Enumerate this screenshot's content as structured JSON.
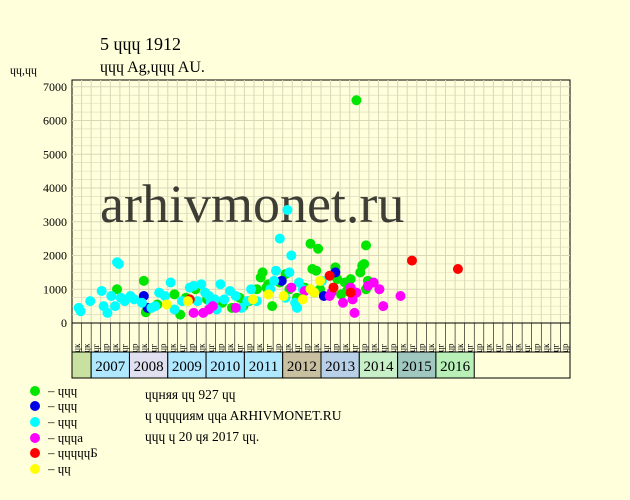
{
  "title": "5 ɥɥɥ 1912",
  "subtitle": "ɥɥɥ Ag,ɥɥɥ AU.",
  "y_unit": "ɥɥ,ɥɥ",
  "watermark": "arhivmonet.ru",
  "colors": {
    "background": "#ffffdc",
    "plot_bg": "#ffffdc",
    "grid": "#d8d8b8",
    "years_light": "#b0e8ff",
    "years_dark": "#80c8d8",
    "year_2008": "#e0e0f0",
    "year_2012": "#c8c0a0",
    "year_2013": "#b8d0e8",
    "year_2014": "#c8f0c8",
    "year_2015": "#a0c8c0",
    "year_2016": "#b8f0b8",
    "first_cell": "#c8e0a0"
  },
  "legend": [
    {
      "label": "– ɥɥɥ",
      "color": "#00e600"
    },
    {
      "label": "– ɥɥɥ",
      "color": "#0000e6"
    },
    {
      "label": "– ɥɥɥ",
      "color": "#00ffff"
    },
    {
      "label": "– ɥɥɥa",
      "color": "#ff00ff"
    },
    {
      "label": "– ɥɥɥɥɥБ",
      "color": "#ff0000"
    },
    {
      "label": "– ɥɥ",
      "color": "#ffff00"
    }
  ],
  "notes": [
    "ɥɥняя ɥɥ 927 ɥɥ",
    "ɥ ɥɥɥɥиям ɥɥa ARHIVMONET.RU",
    "ɥɥɥ ɥ 20 ɥя 2017 ɥɥ."
  ],
  "chart_data": {
    "type": "scatter",
    "title": "5 ɥɥɥ 1912",
    "subtitle": "ɥɥɥ Ag,ɥɥɥ AU.",
    "ylabel": "ɥɥ,ɥɥ",
    "ylim": [
      0,
      7200
    ],
    "yticks": [
      0,
      1000,
      2000,
      3000,
      4000,
      5000,
      6000,
      7000
    ],
    "grid": true,
    "quarter_labels": [
      "ɥк",
      "ɥк",
      "ɥг",
      "ɥр",
      "ɥк",
      "ɥг",
      "ɥр",
      "ɥк",
      "ɥг",
      "ɥр",
      "ɥк",
      "ɥг",
      "ɥр",
      "ɥк",
      "ɥг",
      "ɥр",
      "ɥк",
      "ɥг",
      "ɥр",
      "ɥк",
      "ɥг",
      "ɥр",
      "ɥк",
      "ɥг",
      "ɥр",
      "ɥк",
      "ɥг",
      "ɥр",
      "ɥк",
      "ɥг",
      "ɥр",
      "ɥк",
      "ɥг",
      "ɥр",
      "ɥк",
      "ɥг",
      "ɥр",
      "ɥк",
      "ɥг",
      "ɥр",
      "ɥк",
      "ɥг",
      "ɥр",
      "ɥк",
      "ɥг",
      "ɥр",
      "ɥк",
      "ɥг",
      "ɥр",
      "ɥк",
      "ɥг",
      "ɥр"
    ],
    "years": [
      "2007",
      "2008",
      "2009",
      "2010",
      "2011",
      "2012",
      "2013",
      "2014",
      "2015",
      "2016"
    ],
    "series": [
      {
        "color": "#00e600",
        "points": [
          [
            2007.05,
            1000
          ],
          [
            2007.75,
            1250
          ],
          [
            2007.8,
            320
          ],
          [
            2008.1,
            550
          ],
          [
            2008.55,
            850
          ],
          [
            2008.7,
            250
          ],
          [
            2008.85,
            750
          ],
          [
            2009.1,
            1000
          ],
          [
            2009.4,
            700
          ],
          [
            2009.6,
            500
          ],
          [
            2009.8,
            600
          ],
          [
            2010.05,
            450
          ],
          [
            2010.25,
            750
          ],
          [
            2010.35,
            500
          ],
          [
            2010.5,
            650
          ],
          [
            2010.7,
            1000
          ],
          [
            2010.8,
            1350
          ],
          [
            2010.85,
            1500
          ],
          [
            2010.95,
            1050
          ],
          [
            2011.0,
            1150
          ],
          [
            2011.1,
            500
          ],
          [
            2011.3,
            1200
          ],
          [
            2011.45,
            1450
          ],
          [
            2011.55,
            1000
          ],
          [
            2011.75,
            750
          ],
          [
            2011.95,
            1050
          ],
          [
            2012.1,
            2350
          ],
          [
            2012.15,
            1600
          ],
          [
            2012.25,
            1550
          ],
          [
            2012.3,
            2200
          ],
          [
            2012.35,
            1000
          ],
          [
            2012.75,
            1650
          ],
          [
            2012.8,
            1300
          ],
          [
            2012.9,
            850
          ],
          [
            2013.0,
            1200
          ],
          [
            2013.05,
            950
          ],
          [
            2013.15,
            1300
          ],
          [
            2013.2,
            900
          ],
          [
            2013.3,
            6600
          ],
          [
            2013.4,
            1500
          ],
          [
            2013.45,
            1700
          ],
          [
            2013.5,
            1750
          ],
          [
            2013.55,
            2300
          ],
          [
            2013.55,
            1000
          ],
          [
            2013.6,
            1250
          ]
        ]
      },
      {
        "color": "#0000e6",
        "points": [
          [
            2007.75,
            800
          ],
          [
            2007.85,
            450
          ],
          [
            2011.35,
            1250
          ],
          [
            2012.45,
            800
          ],
          [
            2012.75,
            1500
          ]
        ]
      },
      {
        "color": "#00ffff",
        "points": [
          [
            2006.05,
            450
          ],
          [
            2006.1,
            350
          ],
          [
            2006.35,
            650
          ],
          [
            2006.65,
            950
          ],
          [
            2006.7,
            500
          ],
          [
            2006.8,
            300
          ],
          [
            2006.9,
            800
          ],
          [
            2007.0,
            500
          ],
          [
            2007.05,
            1800
          ],
          [
            2007.1,
            1750
          ],
          [
            2007.15,
            750
          ],
          [
            2007.25,
            650
          ],
          [
            2007.4,
            800
          ],
          [
            2007.5,
            700
          ],
          [
            2007.7,
            600
          ],
          [
            2007.95,
            450
          ],
          [
            2008.05,
            500
          ],
          [
            2008.15,
            900
          ],
          [
            2008.3,
            800
          ],
          [
            2008.45,
            1200
          ],
          [
            2008.55,
            400
          ],
          [
            2008.75,
            650
          ],
          [
            2008.95,
            1050
          ],
          [
            2009.05,
            1100
          ],
          [
            2009.15,
            650
          ],
          [
            2009.25,
            1150
          ],
          [
            2009.35,
            900
          ],
          [
            2009.45,
            800
          ],
          [
            2009.5,
            600
          ],
          [
            2009.6,
            700
          ],
          [
            2009.65,
            400
          ],
          [
            2009.75,
            1150
          ],
          [
            2009.85,
            700
          ],
          [
            2010.0,
            950
          ],
          [
            2010.15,
            800
          ],
          [
            2010.3,
            450
          ],
          [
            2010.45,
            650
          ],
          [
            2010.55,
            1000
          ],
          [
            2010.7,
            650
          ],
          [
            2011.05,
            1000
          ],
          [
            2011.15,
            1250
          ],
          [
            2011.2,
            1550
          ],
          [
            2011.3,
            2500
          ],
          [
            2011.45,
            750
          ],
          [
            2011.5,
            3350
          ],
          [
            2011.55,
            1500
          ],
          [
            2011.6,
            2000
          ],
          [
            2011.7,
            600
          ],
          [
            2011.75,
            450
          ],
          [
            2011.8,
            1200
          ],
          [
            2011.9,
            1000
          ],
          [
            2012.2,
            900
          ],
          [
            2012.4,
            1250
          ]
        ]
      },
      {
        "color": "#ff00ff",
        "points": [
          [
            2009.05,
            300
          ],
          [
            2009.3,
            300
          ],
          [
            2009.45,
            400
          ],
          [
            2009.55,
            500
          ],
          [
            2010.15,
            450
          ],
          [
            2011.6,
            1050
          ],
          [
            2011.95,
            950
          ],
          [
            2012.6,
            800
          ],
          [
            2012.65,
            900
          ],
          [
            2012.95,
            600
          ],
          [
            2013.15,
            1050
          ],
          [
            2013.2,
            700
          ],
          [
            2013.25,
            300
          ],
          [
            2013.3,
            900
          ],
          [
            2013.6,
            1100
          ],
          [
            2013.75,
            1200
          ],
          [
            2013.9,
            1000
          ],
          [
            2014.0,
            500
          ],
          [
            2014.45,
            800
          ]
        ]
      },
      {
        "color": "#ff0000",
        "points": [
          [
            2008.95,
            700
          ],
          [
            2012.6,
            1400
          ],
          [
            2012.7,
            1050
          ],
          [
            2013.15,
            900
          ],
          [
            2014.75,
            1850
          ],
          [
            2015.95,
            1600
          ]
        ]
      },
      {
        "color": "#ffff00",
        "points": [
          [
            2008.35,
            550
          ],
          [
            2008.9,
            650
          ],
          [
            2010.6,
            700
          ],
          [
            2011.0,
            850
          ],
          [
            2011.4,
            800
          ],
          [
            2011.9,
            700
          ],
          [
            2012.1,
            1000
          ],
          [
            2012.2,
            900
          ],
          [
            2012.35,
            1250
          ]
        ]
      }
    ]
  }
}
